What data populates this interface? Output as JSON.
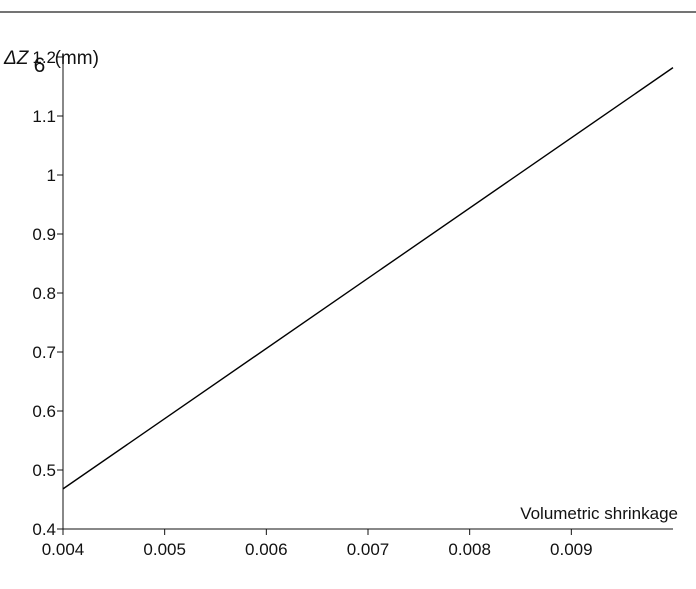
{
  "chart_data": {
    "type": "line",
    "title": "",
    "ylabel": {
      "symbol": "ΔZ",
      "subscript": "6",
      "unit": "(mm)"
    },
    "xlabel": "Volumetric shrinkage",
    "xlim": [
      0.004,
      0.01
    ],
    "ylim": [
      0.4,
      1.2
    ],
    "xticks": [
      "0.004",
      "0.005",
      "0.006",
      "0.007",
      "0.008",
      "0.009"
    ],
    "xtick_values": [
      0.004,
      0.005,
      0.006,
      0.007,
      0.008,
      0.009
    ],
    "yticks": [
      "0.4",
      "0.5",
      "0.6",
      "0.7",
      "0.8",
      "0.9",
      "1",
      "1.1",
      "1.2"
    ],
    "ytick_values": [
      0.4,
      0.5,
      0.6,
      0.7,
      0.8,
      0.9,
      1.0,
      1.1,
      1.2
    ],
    "grid": false,
    "series": [
      {
        "color": "#000000",
        "points": [
          {
            "x": 0.004,
            "y": 0.468
          },
          {
            "x": 0.01,
            "y": 1.182
          }
        ]
      }
    ]
  }
}
